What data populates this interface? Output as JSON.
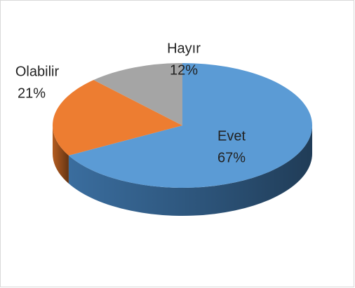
{
  "chart_data": {
    "type": "pie3d",
    "categories": [
      "Evet",
      "Olabilir",
      "Hayır"
    ],
    "values": [
      67,
      21,
      12
    ],
    "value_labels": [
      "67%",
      "21%",
      "12%"
    ],
    "colors": [
      "#5b9bd5",
      "#ed7d31",
      "#a5a5a5"
    ],
    "side_colors": [
      "#3a6d9e",
      "#b35c20",
      "#7f7f7f"
    ],
    "start_angle": 0,
    "direction": "clockwise"
  }
}
